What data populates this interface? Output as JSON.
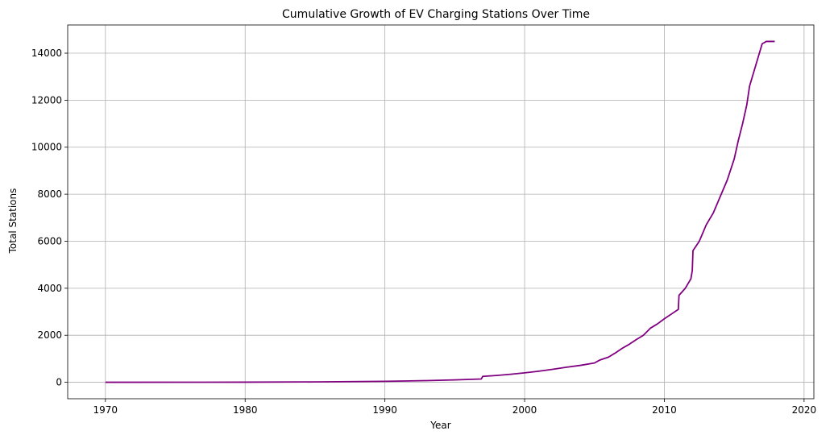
{
  "chart_data": {
    "type": "line",
    "title": "Cumulative Growth of EV Charging Stations Over Time",
    "xlabel": "Year",
    "ylabel": "Total Stations",
    "xlim": [
      1967.3,
      2020.7
    ],
    "ylim": [
      -700,
      15200
    ],
    "x_ticks": [
      1970,
      1980,
      1990,
      2000,
      2010,
      2020
    ],
    "y_ticks": [
      0,
      2000,
      4000,
      6000,
      8000,
      10000,
      12000,
      14000
    ],
    "grid": true,
    "line_color": "#800080",
    "series": [
      {
        "points": [
          [
            1970,
            0
          ],
          [
            1980,
            5
          ],
          [
            1985,
            15
          ],
          [
            1990,
            40
          ],
          [
            1993,
            70
          ],
          [
            1995,
            100
          ],
          [
            1996.9,
            140
          ],
          [
            1997.0,
            250
          ],
          [
            1998,
            290
          ],
          [
            1999,
            340
          ],
          [
            2000,
            400
          ],
          [
            2001,
            470
          ],
          [
            2002,
            550
          ],
          [
            2003,
            640
          ],
          [
            2004,
            720
          ],
          [
            2005,
            820
          ],
          [
            2005.4,
            950
          ],
          [
            2006,
            1070
          ],
          [
            2006.5,
            1250
          ],
          [
            2007,
            1450
          ],
          [
            2007.5,
            1620
          ],
          [
            2008,
            1820
          ],
          [
            2008.5,
            2000
          ],
          [
            2009,
            2300
          ],
          [
            2009.5,
            2480
          ],
          [
            2010,
            2700
          ],
          [
            2010.5,
            2900
          ],
          [
            2011,
            3100
          ],
          [
            2011.05,
            3700
          ],
          [
            2011.5,
            4000
          ],
          [
            2011.9,
            4400
          ],
          [
            2012.0,
            4750
          ],
          [
            2012.05,
            5600
          ],
          [
            2012.5,
            6000
          ],
          [
            2013,
            6700
          ],
          [
            2013.5,
            7200
          ],
          [
            2014,
            7900
          ],
          [
            2014.5,
            8600
          ],
          [
            2015,
            9500
          ],
          [
            2015.3,
            10300
          ],
          [
            2015.6,
            11000
          ],
          [
            2015.9,
            11800
          ],
          [
            2016.1,
            12600
          ],
          [
            2016.4,
            13200
          ],
          [
            2016.7,
            13800
          ],
          [
            2017.0,
            14400
          ],
          [
            2017.3,
            14500
          ],
          [
            2017.9,
            14500
          ]
        ]
      }
    ]
  }
}
